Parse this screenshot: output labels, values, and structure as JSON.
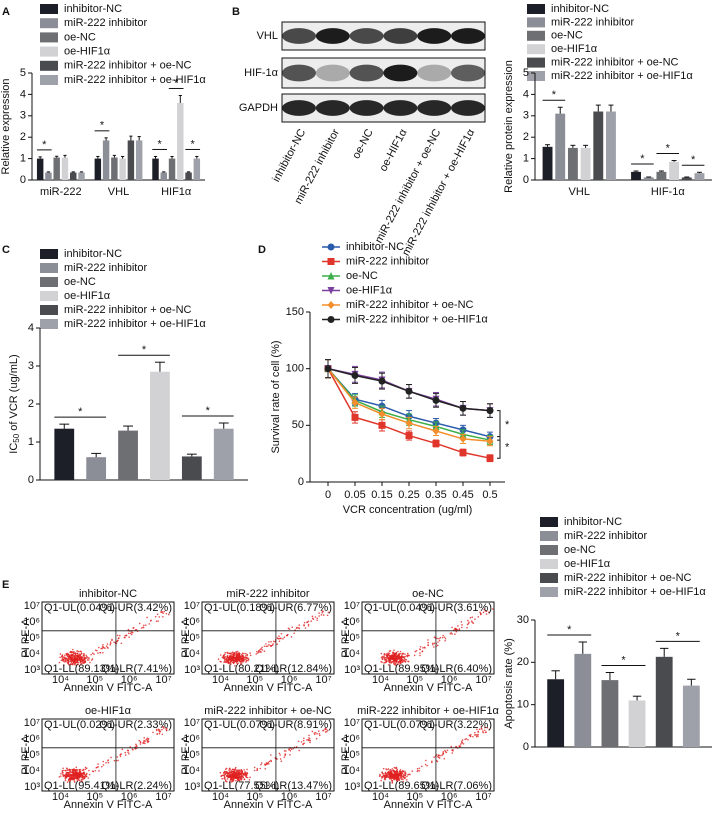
{
  "panel_labels": [
    "A",
    "B",
    "C",
    "D",
    "E"
  ],
  "chart_data": [
    {
      "type": "bar",
      "ylabel": "Relative expression",
      "categories": [
        "miR-222",
        "VHL",
        "HIF1α"
      ],
      "ylim": [
        0,
        5
      ],
      "yticks": [
        0,
        1,
        2,
        3,
        4,
        5
      ],
      "series": [
        {
          "name": "inhibitor-NC",
          "color": "#1c1f28",
          "values": [
            1.0,
            1.0,
            1.0
          ],
          "errors": [
            0.08,
            0.1,
            0.1
          ]
        },
        {
          "name": "miR-222 inhibitor",
          "color": "#8b8e96",
          "values": [
            0.35,
            1.85,
            0.35
          ],
          "errors": [
            0.03,
            0.12,
            0.03
          ]
        },
        {
          "name": "oe-NC",
          "color": "#6e6f73",
          "values": [
            1.05,
            1.05,
            1.0
          ],
          "errors": [
            0.06,
            0.1,
            0.1
          ]
        },
        {
          "name": "oe-HIF1α",
          "color": "#d2d2d4",
          "values": [
            1.05,
            1.0,
            3.6
          ],
          "errors": [
            0.1,
            0.1,
            0.35
          ]
        },
        {
          "name": "miR-222 inhibitor + oe-NC",
          "color": "#4a4b4f",
          "values": [
            0.35,
            1.85,
            0.35
          ],
          "errors": [
            0.03,
            0.2,
            0.03
          ]
        },
        {
          "name": "miR-222 inhibitor + oe-HIF1α",
          "color": "#9ea1a9",
          "values": [
            0.35,
            1.85,
            1.0
          ],
          "errors": [
            0.03,
            0.18,
            0.1
          ]
        }
      ],
      "annotations": [
        "*",
        "*",
        "*",
        "*",
        "*"
      ]
    },
    {
      "type": "bar",
      "ylabel": "Relative protein expression",
      "categories": [
        "VHL",
        "HIF-1α"
      ],
      "ylim": [
        0,
        5
      ],
      "yticks": [
        0,
        1,
        2,
        3,
        4,
        5
      ],
      "series": [
        {
          "name": "inhibitor-NC",
          "color": "#1c1f28",
          "values": [
            1.55,
            0.38
          ],
          "errors": [
            0.1,
            0.04
          ]
        },
        {
          "name": "miR-222 inhibitor",
          "color": "#8b8e96",
          "values": [
            3.1,
            0.12
          ],
          "errors": [
            0.3,
            0.02
          ]
        },
        {
          "name": "oe-NC",
          "color": "#6e6f73",
          "values": [
            1.5,
            0.38
          ],
          "errors": [
            0.12,
            0.04
          ]
        },
        {
          "name": "oe-HIF1α",
          "color": "#d2d2d4",
          "values": [
            1.5,
            0.85
          ],
          "errors": [
            0.12,
            0.06
          ]
        },
        {
          "name": "miR-222 inhibitor + oe-NC",
          "color": "#4a4b4f",
          "values": [
            3.2,
            0.12
          ],
          "errors": [
            0.3,
            0.02
          ]
        },
        {
          "name": "miR-222 inhibitor + oe-HIF1α",
          "color": "#9ea1a9",
          "values": [
            3.2,
            0.32
          ],
          "errors": [
            0.3,
            0.04
          ]
        }
      ],
      "annotations": [
        "*",
        "*",
        "*",
        "*"
      ]
    },
    {
      "type": "bar",
      "ylabel": [
        "IC",
        "50",
        " of VCR (ug/mL)"
      ],
      "categories": [
        null
      ],
      "ylim": [
        0,
        4
      ],
      "yticks": [
        0,
        1,
        2,
        3,
        4
      ],
      "series": [
        {
          "name": "inhibitor-NC",
          "color": "#1c1f28",
          "values": [
            1.35
          ],
          "errors": [
            0.12
          ]
        },
        {
          "name": "miR-222 inhibitor",
          "color": "#8b8e96",
          "values": [
            0.6
          ],
          "errors": [
            0.1
          ]
        },
        {
          "name": "oe-NC",
          "color": "#6e6f73",
          "values": [
            1.3
          ],
          "errors": [
            0.12
          ]
        },
        {
          "name": "oe-HIF1α",
          "color": "#d2d2d4",
          "values": [
            2.85
          ],
          "errors": [
            0.25
          ]
        },
        {
          "name": "miR-222 inhibitor + oe-NC",
          "color": "#4a4b4f",
          "values": [
            0.62
          ],
          "errors": [
            0.06
          ]
        },
        {
          "name": "miR-222 inhibitor + oe-HIF1α",
          "color": "#9ea1a9",
          "values": [
            1.35
          ],
          "errors": [
            0.15
          ]
        }
      ],
      "annotations": [
        "*",
        "*",
        "*"
      ]
    },
    {
      "type": "line",
      "ylabel": "Survival rate of cell (%)",
      "xlabel": "VCR concentration (ug/ml)",
      "categories": [
        "0",
        "0.05",
        "0.15",
        "0.25",
        "0.35",
        "0.45",
        "0.5"
      ],
      "ylim": [
        0,
        150
      ],
      "yticks": [
        0,
        50,
        100,
        150
      ],
      "series": [
        {
          "name": "inhibitor-NC",
          "color": "#2b5cab",
          "marker": "circle",
          "values": [
            100,
            73,
            67,
            58,
            52,
            46,
            40
          ],
          "errors": [
            8,
            5,
            5,
            5,
            4,
            4,
            4
          ]
        },
        {
          "name": "miR-222 inhibitor",
          "color": "#e0352b",
          "marker": "square",
          "values": [
            100,
            57,
            50,
            41,
            34,
            26,
            21
          ],
          "errors": [
            8,
            5,
            5,
            4,
            3,
            3,
            3
          ]
        },
        {
          "name": "oe-NC",
          "color": "#3cae48",
          "marker": "triangle",
          "values": [
            100,
            72,
            62,
            55,
            49,
            42,
            37
          ],
          "errors": [
            8,
            5,
            5,
            5,
            4,
            4,
            4
          ]
        },
        {
          "name": "oe-HIF1α",
          "color": "#7b3f9e",
          "marker": "triangle-down",
          "values": [
            100,
            95,
            90,
            80,
            73,
            65,
            63
          ],
          "errors": [
            8,
            7,
            7,
            6,
            6,
            6,
            6
          ]
        },
        {
          "name": "miR-222 inhibitor + oe-NC",
          "color": "#f28e2b",
          "marker": "diamond",
          "values": [
            100,
            70,
            60,
            52,
            45,
            38,
            36
          ],
          "errors": [
            8,
            5,
            5,
            5,
            4,
            4,
            4
          ]
        },
        {
          "name": "miR-222 inhibitor + oe-HIF1α",
          "color": "#222222",
          "marker": "circle",
          "values": [
            100,
            94,
            89,
            80,
            72,
            65,
            63
          ],
          "errors": [
            8,
            7,
            7,
            6,
            6,
            6,
            6
          ]
        }
      ],
      "annotations": [
        "*",
        "*"
      ]
    },
    {
      "type": "bar",
      "ylabel": "Apoptosis rate (%)",
      "categories": [
        null
      ],
      "ylim": [
        0,
        30
      ],
      "yticks": [
        0,
        10,
        20,
        30
      ],
      "series": [
        {
          "name": "inhibitor-NC",
          "color": "#1c1f28",
          "values": [
            16
          ],
          "errors": [
            2
          ]
        },
        {
          "name": "miR-222 inhibitor",
          "color": "#8b8e96",
          "values": [
            22
          ],
          "errors": [
            2.8
          ]
        },
        {
          "name": "oe-NC",
          "color": "#6e6f73",
          "values": [
            15.8
          ],
          "errors": [
            1.8
          ]
        },
        {
          "name": "oe-HIF1α",
          "color": "#d2d2d4",
          "values": [
            11
          ],
          "errors": [
            1
          ]
        },
        {
          "name": "miR-222 inhibitor + oe-NC",
          "color": "#4a4b4f",
          "values": [
            21.3
          ],
          "errors": [
            2
          ]
        },
        {
          "name": "miR-222 inhibitor + oe-HIF1α",
          "color": "#9ea1a9",
          "values": [
            14.5
          ],
          "errors": [
            1.5
          ]
        }
      ],
      "annotations": [
        "*",
        "*",
        "*"
      ]
    }
  ],
  "blot": {
    "rows": [
      "VHL",
      "HIF-1α",
      "GAPDH"
    ],
    "lanes": [
      "inhibitor-NC",
      "miR-222 inhibitor",
      "oe-NC",
      "oe-HIF1α",
      "miR-222 inhibitor + oe-NC",
      "miR-222 inhibitor + oe-HIF1α"
    ]
  },
  "flow": {
    "y_label": "PI PE-A",
    "x_label": "Annexin V FITC-A",
    "x_ticks": [
      "10⁴",
      "10⁵",
      "10⁶",
      "10⁷"
    ],
    "y_ticks": [
      "10³",
      "10⁴",
      "10⁵",
      "10⁶",
      "10⁷"
    ],
    "plots": [
      {
        "title": "inhibitor-NC",
        "quadrants": [
          "Q1-UL(0.04%)",
          "Q1-UR(3.42%)",
          "Q1-LL(89.13%)",
          "Q1-LR(7.41%)"
        ]
      },
      {
        "title": "miR-222 inhibitor",
        "quadrants": [
          "Q1-UL(0.18%)",
          "Q1-UR(6.77%)",
          "Q1-LL(80.21%)",
          "Q1-LR(12.84%)"
        ]
      },
      {
        "title": "oe-NC",
        "quadrants": [
          "Q1-UL(0.04%)",
          "Q1-UR(3.61%)",
          "Q1-LL(89.95%)",
          "Q1-LR(6.40%)"
        ]
      },
      {
        "title": "oe-HIF1α",
        "quadrants": [
          "Q1-UL(0.02%)",
          "Q1-UR(2.33%)",
          "Q1-LL(95.41%)",
          "Q1-LR(2.24%)"
        ]
      },
      {
        "title": "miR-222 inhibitor + oe-NC",
        "quadrants": [
          "Q1-UL(0.07%)",
          "Q1-UR(8.91%)",
          "Q1-LL(77.55%)",
          "Q1-LR(13.47%)"
        ]
      },
      {
        "title": "miR-222 inhibitor + oe-HIF1α",
        "quadrants": [
          "Q1-UL(0.07%)",
          "Q1-UR(3.22%)",
          "Q1-LL(89.65%)",
          "Q1-LR(7.06%)"
        ]
      }
    ]
  }
}
